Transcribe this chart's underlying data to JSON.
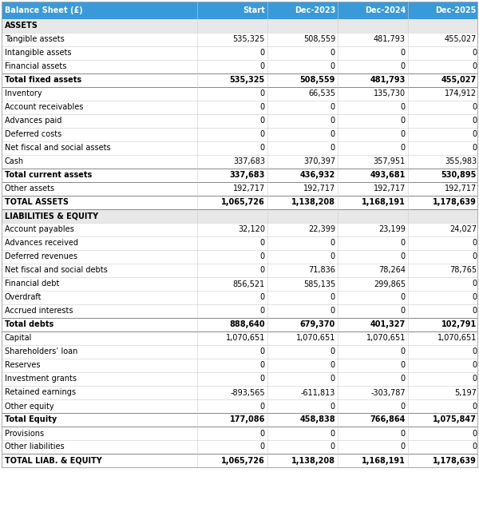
{
  "columns": [
    "Balance Sheet (£)",
    "Start",
    "Dec-2023",
    "Dec-2024",
    "Dec-2025"
  ],
  "header_bg": "#3a9ad9",
  "header_fg": "#FFFFFF",
  "section_bg": "#E8E8E8",
  "rows": [
    {
      "label": "ASSETS",
      "values": [
        "",
        "",
        "",
        ""
      ],
      "type": "section"
    },
    {
      "label": "Tangible assets",
      "values": [
        "535,325",
        "508,559",
        "481,793",
        "455,027"
      ],
      "type": "normal"
    },
    {
      "label": "Intangible assets",
      "values": [
        "0",
        "0",
        "0",
        "0"
      ],
      "type": "normal"
    },
    {
      "label": "Financial assets",
      "values": [
        "0",
        "0",
        "0",
        "0"
      ],
      "type": "normal"
    },
    {
      "label": "Total fixed assets",
      "values": [
        "535,325",
        "508,559",
        "481,793",
        "455,027"
      ],
      "type": "total"
    },
    {
      "label": "Inventory",
      "values": [
        "0",
        "66,535",
        "135,730",
        "174,912"
      ],
      "type": "normal"
    },
    {
      "label": "Account receivables",
      "values": [
        "0",
        "0",
        "0",
        "0"
      ],
      "type": "normal"
    },
    {
      "label": "Advances paid",
      "values": [
        "0",
        "0",
        "0",
        "0"
      ],
      "type": "normal"
    },
    {
      "label": "Deferred costs",
      "values": [
        "0",
        "0",
        "0",
        "0"
      ],
      "type": "normal"
    },
    {
      "label": "Net fiscal and social assets",
      "values": [
        "0",
        "0",
        "0",
        "0"
      ],
      "type": "normal"
    },
    {
      "label": "Cash",
      "values": [
        "337,683",
        "370,397",
        "357,951",
        "355,983"
      ],
      "type": "normal"
    },
    {
      "label": "Total current assets",
      "values": [
        "337,683",
        "436,932",
        "493,681",
        "530,895"
      ],
      "type": "total"
    },
    {
      "label": "Other assets",
      "values": [
        "192,717",
        "192,717",
        "192,717",
        "192,717"
      ],
      "type": "normal"
    },
    {
      "label": "TOTAL ASSETS",
      "values": [
        "1,065,726",
        "1,138,208",
        "1,168,191",
        "1,178,639"
      ],
      "type": "grand_total"
    },
    {
      "label": "LIABILITIES & EQUITY",
      "values": [
        "",
        "",
        "",
        ""
      ],
      "type": "section"
    },
    {
      "label": "Account payables",
      "values": [
        "32,120",
        "22,399",
        "23,199",
        "24,027"
      ],
      "type": "normal"
    },
    {
      "label": "Advances received",
      "values": [
        "0",
        "0",
        "0",
        "0"
      ],
      "type": "normal"
    },
    {
      "label": "Deferred revenues",
      "values": [
        "0",
        "0",
        "0",
        "0"
      ],
      "type": "normal"
    },
    {
      "label": "Net fiscal and social debts",
      "values": [
        "0",
        "71,836",
        "78,264",
        "78,765"
      ],
      "type": "normal"
    },
    {
      "label": "Financial debt",
      "values": [
        "856,521",
        "585,135",
        "299,865",
        "0"
      ],
      "type": "normal"
    },
    {
      "label": "Overdraft",
      "values": [
        "0",
        "0",
        "0",
        "0"
      ],
      "type": "normal"
    },
    {
      "label": "Accrued interests",
      "values": [
        "0",
        "0",
        "0",
        "0"
      ],
      "type": "normal"
    },
    {
      "label": "Total debts",
      "values": [
        "888,640",
        "679,370",
        "401,327",
        "102,791"
      ],
      "type": "total"
    },
    {
      "label": "Capital",
      "values": [
        "1,070,651",
        "1,070,651",
        "1,070,651",
        "1,070,651"
      ],
      "type": "normal"
    },
    {
      "label": "Shareholders’ loan",
      "values": [
        "0",
        "0",
        "0",
        "0"
      ],
      "type": "normal"
    },
    {
      "label": "Reserves",
      "values": [
        "0",
        "0",
        "0",
        "0"
      ],
      "type": "normal"
    },
    {
      "label": "Investment grants",
      "values": [
        "0",
        "0",
        "0",
        "0"
      ],
      "type": "normal"
    },
    {
      "label": "Retained earnings",
      "values": [
        "-893,565",
        "-611,813",
        "-303,787",
        "5,197"
      ],
      "type": "normal"
    },
    {
      "label": "Other equity",
      "values": [
        "0",
        "0",
        "0",
        "0"
      ],
      "type": "normal"
    },
    {
      "label": "Total Equity",
      "values": [
        "177,086",
        "458,838",
        "766,864",
        "1,075,847"
      ],
      "type": "total"
    },
    {
      "label": "Provisions",
      "values": [
        "0",
        "0",
        "0",
        "0"
      ],
      "type": "normal"
    },
    {
      "label": "Other liabilities",
      "values": [
        "0",
        "0",
        "0",
        "0"
      ],
      "type": "normal"
    },
    {
      "label": "TOTAL LIAB. & EQUITY",
      "values": [
        "1,065,726",
        "1,138,208",
        "1,168,191",
        "1,178,639"
      ],
      "type": "grand_total"
    }
  ]
}
